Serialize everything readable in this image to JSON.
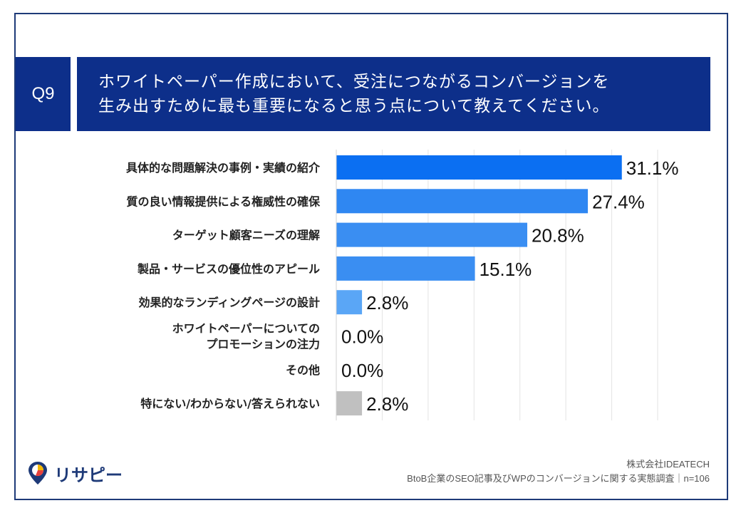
{
  "question": {
    "tag": "Q9",
    "title_line1": "ホワイトペーパー作成において、受注につながるコンバージョンを",
    "title_line2": "生み出すために最も重要になると思う点について教えてください。"
  },
  "chart_data": {
    "type": "bar",
    "orientation": "horizontal",
    "unit": "%",
    "xlim": [
      0,
      35
    ],
    "categories": [
      [
        "具体的な問題解決の事例・実績の紹介"
      ],
      [
        "質の良い情報提供による権威性の確保"
      ],
      [
        "ターゲット顧客ニーズの理解"
      ],
      [
        "製品・サービスの優位性のアピール"
      ],
      [
        "効果的なランディングページの設計"
      ],
      [
        "ホワイトペーパーについての",
        "プロモーションの注力"
      ],
      [
        "その他"
      ],
      [
        "特にない/わからない/答えられない"
      ]
    ],
    "values": [
      31.1,
      27.4,
      20.8,
      15.1,
      2.8,
      0.0,
      0.0,
      2.8
    ],
    "labels": [
      "31.1%",
      "27.4%",
      "20.8%",
      "15.1%",
      "2.8%",
      "0.0%",
      "0.0%",
      "2.8%"
    ],
    "colors": [
      "#0b6ff2",
      "#2f87f2",
      "#3a8ef2",
      "#3a8ef2",
      "#5aa6f6",
      "#5aa6f6",
      "#5aa6f6",
      "#c0c0c0"
    ]
  },
  "footer": {
    "company": "株式会社IDEATECH",
    "source": "BtoB企業のSEO記事及びWPのコンバージョンに関する実態調査｜n=106"
  },
  "logo": {
    "text": "リサピー",
    "accent_colors": [
      "#1e3a78",
      "#f5b800",
      "#e8413c"
    ]
  }
}
